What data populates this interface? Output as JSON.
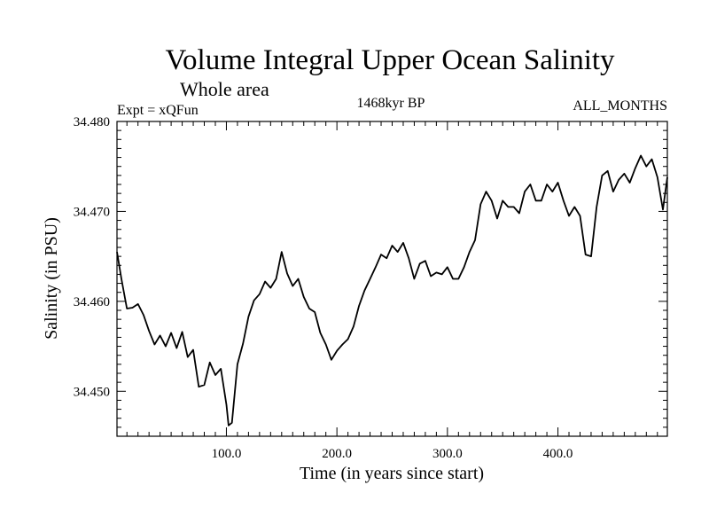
{
  "chart_data": {
    "type": "line",
    "title": "Volume Integral Upper Ocean Salinity",
    "subtitle": "Whole area",
    "experiment": "Expt = xQFun",
    "period": "1468kyr BP",
    "months": "ALL_MONTHS",
    "xlabel": "Time (in years since start)",
    "ylabel": "Salinity (in PSU)",
    "xlim": [
      1,
      499
    ],
    "ylim": [
      34.445,
      34.48
    ],
    "xticks": [
      100,
      200,
      300,
      400
    ],
    "xtick_labels": [
      "100.0",
      "200.0",
      "300.0",
      "400.0"
    ],
    "yticks": [
      34.45,
      34.46,
      34.47,
      34.48
    ],
    "ytick_labels": [
      "34.450",
      "34.460",
      "34.470",
      "34.480"
    ],
    "grid": false,
    "series": [
      {
        "name": "salinity",
        "color": "#000000",
        "x": [
          1,
          5,
          10,
          15,
          20,
          25,
          30,
          35,
          40,
          45,
          50,
          55,
          60,
          65,
          70,
          75,
          80,
          85,
          90,
          95,
          100,
          102,
          105,
          110,
          115,
          120,
          125,
          130,
          135,
          140,
          145,
          150,
          155,
          160,
          165,
          170,
          175,
          180,
          185,
          190,
          195,
          200,
          205,
          210,
          215,
          220,
          225,
          230,
          235,
          240,
          245,
          250,
          255,
          260,
          265,
          270,
          275,
          280,
          285,
          290,
          295,
          300,
          305,
          310,
          315,
          320,
          325,
          330,
          335,
          340,
          345,
          350,
          355,
          360,
          365,
          370,
          375,
          380,
          385,
          390,
          395,
          400,
          405,
          410,
          415,
          420,
          425,
          430,
          435,
          440,
          445,
          450,
          455,
          460,
          465,
          470,
          475,
          480,
          485,
          490,
          495,
          499
        ],
        "y": [
          34.4655,
          34.4625,
          34.4592,
          34.4593,
          34.4597,
          34.4585,
          34.4567,
          34.4552,
          34.4562,
          34.455,
          34.4565,
          34.4548,
          34.4566,
          34.4538,
          34.4546,
          34.4505,
          34.4507,
          34.4532,
          34.4518,
          34.4525,
          34.4485,
          34.4462,
          34.4465,
          34.453,
          34.4553,
          34.4583,
          34.4601,
          34.4608,
          34.4622,
          34.4615,
          34.4625,
          34.4655,
          34.4631,
          34.4617,
          34.4625,
          34.4605,
          34.4592,
          34.4588,
          34.4565,
          34.4552,
          34.4535,
          34.4545,
          34.4552,
          34.4558,
          34.4572,
          34.4595,
          34.4612,
          34.4625,
          34.4638,
          34.4652,
          34.4648,
          34.4662,
          34.4655,
          34.4665,
          34.4648,
          34.4625,
          34.4642,
          34.4645,
          34.4628,
          34.4632,
          34.463,
          34.4638,
          34.4625,
          34.4625,
          34.4638,
          34.4655,
          34.4668,
          34.4708,
          34.4722,
          34.4712,
          34.4692,
          34.4712,
          34.4705,
          34.4705,
          34.4698,
          34.4722,
          34.473,
          34.4712,
          34.4712,
          34.473,
          34.4722,
          34.4732,
          34.4712,
          34.4695,
          34.4705,
          34.4695,
          34.4652,
          34.465,
          34.4705,
          34.474,
          34.4745,
          34.4722,
          34.4735,
          34.4742,
          34.4732,
          34.4748,
          34.4762,
          34.475,
          34.4758,
          34.4738,
          34.4702,
          34.4738
        ]
      }
    ]
  }
}
